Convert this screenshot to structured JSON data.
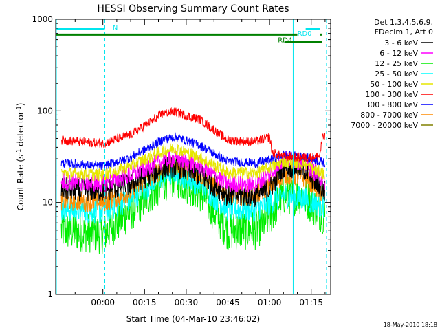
{
  "chart_data": {
    "type": "line",
    "title": "HESSI Observing Summary Count Rates",
    "xlabel": "Start Time (04-Mar-10 23:46:02)",
    "ylabel_main": "Count Rate (s",
    "ylabel_sup1": "-1",
    "ylabel_mid": " detector",
    "ylabel_sup2": "-1",
    "ylabel_end": ")",
    "y_scale": "log",
    "ylim": [
      1,
      1000
    ],
    "xlim_minutes": [
      -17,
      82
    ],
    "x_ticks": [
      {
        "value": 0,
        "label": "00:00"
      },
      {
        "value": 15,
        "label": "00:15"
      },
      {
        "value": 30,
        "label": "00:30"
      },
      {
        "value": 45,
        "label": "00:45"
      },
      {
        "value": 60,
        "label": "01:00"
      },
      {
        "value": 75,
        "label": "01:15"
      }
    ],
    "y_ticks": [
      {
        "value": 1,
        "label": "1"
      },
      {
        "value": 10,
        "label": "10"
      },
      {
        "value": 100,
        "label": "100"
      },
      {
        "value": 1000,
        "label": "1000"
      }
    ],
    "legend_header": [
      "Det 1,3,4,5,6,9,",
      "FDecim 1, Att 0"
    ],
    "legend_placement": "right",
    "footer": "18-May-2010 18:18",
    "annotations": [
      {
        "text": "N",
        "color": "#00e5ee"
      },
      {
        "text": "RD0",
        "color": "#00e5ee"
      },
      {
        "text": "RD4",
        "color": "#008000"
      }
    ],
    "series": [
      {
        "name": "3 - 6 keV",
        "color": "#000000",
        "values": [
          [
            -15,
            14
          ],
          [
            0,
            13.5
          ],
          [
            10,
            16
          ],
          [
            22,
            24
          ],
          [
            26,
            25
          ],
          [
            35,
            20
          ],
          [
            45,
            12
          ],
          [
            55,
            12
          ],
          [
            60,
            14
          ],
          [
            65,
            25
          ],
          [
            72,
            24
          ],
          [
            80,
            13
          ]
        ]
      },
      {
        "name": "6 - 12 keV",
        "color": "#ff00ff",
        "values": [
          [
            -15,
            17
          ],
          [
            0,
            16
          ],
          [
            10,
            20
          ],
          [
            22,
            29
          ],
          [
            26,
            30
          ],
          [
            35,
            25
          ],
          [
            45,
            16
          ],
          [
            55,
            16
          ],
          [
            60,
            20
          ],
          [
            65,
            30
          ],
          [
            72,
            28
          ],
          [
            80,
            17
          ]
        ]
      },
      {
        "name": "12 - 25 keV",
        "color": "#00ee00",
        "values": [
          [
            -15,
            5
          ],
          [
            0,
            4.5
          ],
          [
            10,
            8
          ],
          [
            22,
            17
          ],
          [
            26,
            19
          ],
          [
            35,
            13
          ],
          [
            45,
            5
          ],
          [
            55,
            5
          ],
          [
            60,
            7
          ],
          [
            65,
            12
          ],
          [
            72,
            12
          ],
          [
            80,
            7
          ]
        ]
      },
      {
        "name": "25 - 50 keV",
        "color": "#00ffff",
        "values": [
          [
            -15,
            8.5
          ],
          [
            0,
            8
          ],
          [
            10,
            11
          ],
          [
            22,
            20
          ],
          [
            26,
            22
          ],
          [
            35,
            16
          ],
          [
            45,
            8.5
          ],
          [
            55,
            8.5
          ],
          [
            60,
            10
          ],
          [
            65,
            12
          ],
          [
            72,
            11
          ],
          [
            80,
            9
          ]
        ]
      },
      {
        "name": "50 - 100 keV",
        "color": "#e6e600",
        "values": [
          [
            -15,
            21
          ],
          [
            0,
            20
          ],
          [
            10,
            25
          ],
          [
            22,
            37
          ],
          [
            26,
            39
          ],
          [
            35,
            31
          ],
          [
            45,
            21
          ],
          [
            55,
            21
          ],
          [
            60,
            24
          ],
          [
            65,
            28
          ],
          [
            72,
            27
          ],
          [
            80,
            20
          ]
        ]
      },
      {
        "name": "100 - 300 keV",
        "color": "#ff0000",
        "values": [
          [
            -15,
            48
          ],
          [
            0,
            44
          ],
          [
            10,
            55
          ],
          [
            22,
            95
          ],
          [
            26,
            98
          ],
          [
            35,
            80
          ],
          [
            45,
            48
          ],
          [
            55,
            46
          ],
          [
            60,
            52
          ],
          [
            61,
            35
          ],
          [
            65,
            32
          ],
          [
            72,
            31
          ],
          [
            78,
            32
          ],
          [
            79,
            50
          ],
          [
            80,
            52
          ]
        ]
      },
      {
        "name": "300 - 800 keV",
        "color": "#0000ff",
        "values": [
          [
            -15,
            27
          ],
          [
            0,
            25
          ],
          [
            10,
            31
          ],
          [
            22,
            49
          ],
          [
            26,
            52
          ],
          [
            35,
            42
          ],
          [
            45,
            28
          ],
          [
            55,
            27
          ],
          [
            60,
            29
          ],
          [
            65,
            33
          ],
          [
            72,
            32
          ],
          [
            80,
            27
          ]
        ]
      },
      {
        "name": "800 - 7000 keV",
        "color": "#ff8c00",
        "values": [
          [
            -15,
            10.5
          ],
          [
            0,
            10
          ],
          [
            10,
            13
          ],
          [
            22,
            24
          ],
          [
            26,
            25
          ],
          [
            35,
            20
          ],
          [
            45,
            12
          ],
          [
            55,
            12
          ],
          [
            60,
            15
          ],
          [
            65,
            20
          ],
          [
            72,
            19
          ],
          [
            80,
            12
          ]
        ]
      },
      {
        "name": "7000 - 20000 keV",
        "color": "#808000",
        "values": []
      }
    ]
  }
}
